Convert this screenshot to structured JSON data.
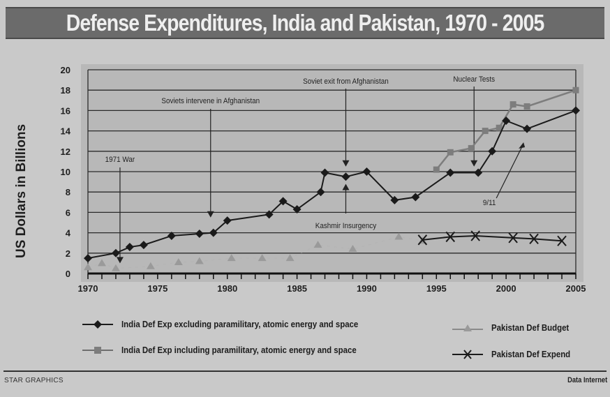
{
  "chart_data": {
    "type": "line",
    "title": "Defense Expenditures, India and Pakistan, 1970 - 2005",
    "xlabel": "",
    "ylabel": "US Dollars in Billions",
    "xlim": [
      1970,
      2005
    ],
    "ylim": [
      0,
      20
    ],
    "xticks": [
      1970,
      1975,
      1980,
      1985,
      1990,
      1995,
      2000,
      2005
    ],
    "yticks": [
      0,
      2,
      4,
      6,
      8,
      10,
      12,
      14,
      16,
      18,
      20
    ],
    "grid": "horizontal",
    "legend_position": "bottom",
    "series": [
      {
        "name": "India Def Exp excluding paramilitary, atomic energy and space",
        "marker": "diamond",
        "color": "#1a1a1a",
        "x": [
          1970,
          1972,
          1973,
          1974,
          1976,
          1978,
          1979,
          1980,
          1983,
          1984,
          1985,
          1986.7,
          1987,
          1988.5,
          1990,
          1992,
          1993.5,
          1996,
          1998,
          1999,
          2000,
          2001.5,
          2005
        ],
        "y": [
          1.5,
          2.0,
          2.6,
          2.8,
          3.7,
          3.9,
          4.0,
          5.2,
          5.8,
          7.1,
          6.3,
          8.0,
          9.9,
          9.5,
          10.0,
          7.2,
          7.5,
          9.9,
          9.9,
          12.0,
          15.0,
          14.2,
          16.0
        ]
      },
      {
        "name": "India Def Exp including paramilitary, atomic energy and space",
        "marker": "square",
        "color": "#7d7d7d",
        "x": [
          1995,
          1996,
          1997.5,
          1998.5,
          1999.5,
          2000.5,
          2001.5,
          2005
        ],
        "y": [
          10.2,
          11.9,
          12.3,
          14.0,
          14.3,
          16.6,
          16.4,
          18.0
        ]
      },
      {
        "name": "Pakistan Def Budget",
        "marker": "triangle",
        "color": "#9a9a9a",
        "x": [
          1970,
          1971,
          1972,
          1974.5,
          1976.5,
          1978,
          1980.3,
          1982.5,
          1984.5,
          1986.5,
          1989,
          1992.3,
          1994
        ],
        "y": [
          0.6,
          1.0,
          0.5,
          0.7,
          1.1,
          1.2,
          1.5,
          1.5,
          1.5,
          2.8,
          2.4,
          3.6,
          3.2
        ]
      },
      {
        "name": "Pakistan Def Expend",
        "marker": "x",
        "color": "#1a1a1a",
        "x": [
          1994,
          1996,
          1997.8,
          2000.5,
          2002,
          2004
        ],
        "y": [
          3.3,
          3.6,
          3.7,
          3.5,
          3.4,
          3.2
        ]
      }
    ],
    "annotations": [
      {
        "text": "1971 War",
        "x": 1972.3,
        "arrow_to_y": 1.0,
        "direction": "down"
      },
      {
        "text": "Soviets intervene in Afghanistan",
        "x": 1978.8,
        "arrow_to_y": 5.5,
        "direction": "down"
      },
      {
        "text": "Soviet exit from Afghanistan",
        "x": 1988.5,
        "arrow_to_y": 10.5,
        "direction": "down"
      },
      {
        "text": "Kashmir Insurgency",
        "x": 1988.5,
        "arrow_to_y": 8.8,
        "direction": "up"
      },
      {
        "text": "Nuclear Tests",
        "x": 1997.7,
        "arrow_to_y": 10.5,
        "direction": "down"
      },
      {
        "text": "9/11",
        "x": 2001.2,
        "arrow_to_y": 12.6,
        "direction": "up"
      }
    ]
  },
  "footer": {
    "credit_left": "STAR GRAPHICS",
    "credit_right": "Data Internet"
  }
}
